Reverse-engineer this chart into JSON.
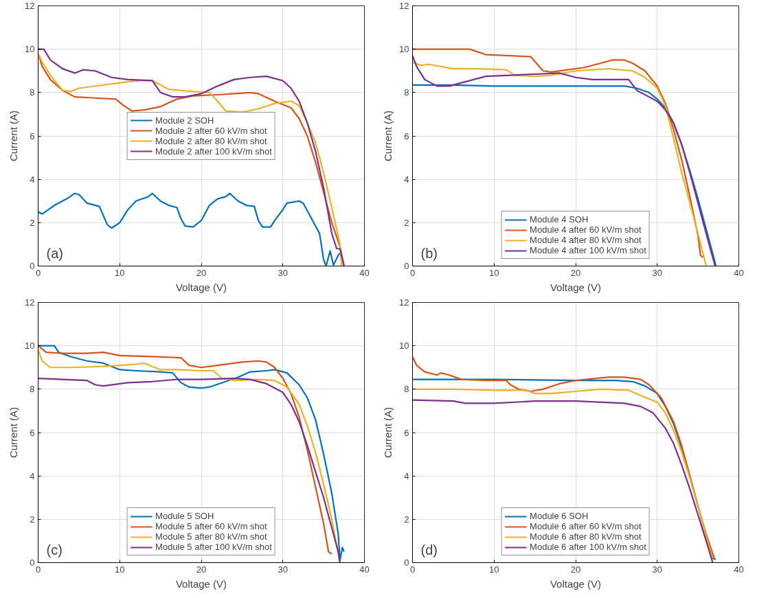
{
  "chart_data": [
    {
      "type": "line",
      "xlabel": "Voltage (V)",
      "ylabel": "Current (A)",
      "xlim": [
        0,
        40
      ],
      "ylim": [
        0,
        12
      ],
      "xticks": [
        0,
        10,
        20,
        30,
        40
      ],
      "yticks": [
        0,
        2,
        4,
        6,
        8,
        10,
        12
      ],
      "grid": true,
      "legend": "center",
      "line_style": "solid",
      "annotations": [
        "(a)"
      ],
      "series": [
        {
          "name": "Module 2 SOH",
          "color": "#0072bd",
          "x": [
            0,
            0.5,
            2,
            3.5,
            4.5,
            5,
            6,
            7.5,
            8.5,
            9,
            10,
            11,
            12,
            13.5,
            14,
            15,
            16,
            17,
            17.5,
            18,
            19,
            20,
            21,
            22,
            23,
            23.5,
            24.5,
            25.5,
            26.5,
            27,
            27.5,
            28.5,
            29,
            30,
            30.5,
            32,
            32.5,
            33.5,
            34.5,
            35,
            35.3,
            35.8,
            36.2,
            36.8,
            37
          ],
          "values": [
            2.5,
            2.4,
            2.8,
            3.1,
            3.35,
            3.3,
            2.9,
            2.75,
            1.9,
            1.75,
            2.0,
            2.6,
            3.0,
            3.2,
            3.35,
            3.0,
            2.8,
            2.7,
            2.2,
            1.85,
            1.8,
            2.1,
            2.8,
            3.1,
            3.2,
            3.35,
            3.0,
            2.8,
            2.75,
            2.1,
            1.8,
            1.8,
            2.1,
            2.6,
            2.9,
            3.0,
            2.9,
            2.2,
            1.5,
            0.3,
            0,
            0.7,
            0.05,
            0.5,
            0.6
          ]
        },
        {
          "name": "Module 2 after 60 kV/m shot",
          "color": "#d95319",
          "x": [
            0,
            0.5,
            1.5,
            3,
            4.5,
            7,
            9.5,
            10.5,
            11.5,
            13,
            15,
            17,
            19,
            22,
            26,
            27,
            29,
            30,
            31,
            32,
            33,
            34,
            35,
            36,
            37,
            37.5
          ],
          "values": [
            9.8,
            9.2,
            8.6,
            8.1,
            7.8,
            7.75,
            7.7,
            7.4,
            7.15,
            7.2,
            7.35,
            7.7,
            7.85,
            7.9,
            8.0,
            7.95,
            7.6,
            7.45,
            7.3,
            6.8,
            6.0,
            4.8,
            3.4,
            2.0,
            0.9,
            0
          ]
        },
        {
          "name": "Module 2 after 80 kV/m shot",
          "color": "#edb120",
          "x": [
            0,
            0.5,
            1.5,
            3,
            4,
            5,
            8,
            11,
            12.5,
            14,
            16,
            19,
            21,
            22,
            23,
            25,
            27,
            29,
            31,
            32,
            33,
            34,
            35,
            36,
            37,
            37.2
          ],
          "values": [
            9.8,
            9.4,
            8.8,
            8.1,
            8.05,
            8.2,
            8.35,
            8.5,
            8.55,
            8.55,
            8.15,
            8.05,
            8.0,
            7.6,
            7.15,
            7.1,
            7.25,
            7.5,
            7.6,
            7.4,
            6.6,
            5.7,
            4.3,
            2.7,
            1.0,
            0
          ]
        },
        {
          "name": "Module 2 after 100 kV/m shot",
          "color": "#7e2f8e",
          "x": [
            0,
            0.7,
            1.5,
            3,
            4.5,
            5.5,
            7,
            9,
            11,
            14,
            15,
            16.5,
            18,
            20,
            22,
            24,
            26,
            28,
            30,
            31,
            32,
            33,
            34,
            35,
            36,
            36.6,
            37,
            37.5
          ],
          "values": [
            10.0,
            10.0,
            9.5,
            9.1,
            8.9,
            9.05,
            9.0,
            8.7,
            8.6,
            8.55,
            8.0,
            7.8,
            7.8,
            7.95,
            8.3,
            8.6,
            8.7,
            8.75,
            8.55,
            8.2,
            7.6,
            6.6,
            5.3,
            3.6,
            1.5,
            0.8,
            0.8,
            0
          ]
        }
      ]
    },
    {
      "type": "line",
      "xlabel": "Voltage (V)",
      "ylabel": "Current (A)",
      "xlim": [
        0,
        40
      ],
      "ylim": [
        0,
        12
      ],
      "xticks": [
        0,
        10,
        20,
        30,
        40
      ],
      "yticks": [
        0,
        2,
        4,
        6,
        8,
        10,
        12
      ],
      "grid": true,
      "legend": "bottom",
      "line_style": "solid",
      "annotations": [
        "(b)"
      ],
      "series": [
        {
          "name": "Module 4 SOH",
          "color": "#0072bd",
          "x": [
            0,
            5,
            10,
            20,
            26,
            27.5,
            29,
            30,
            31,
            32,
            33,
            34,
            35,
            36,
            37,
            37.2
          ],
          "values": [
            8.35,
            8.35,
            8.3,
            8.3,
            8.3,
            8.2,
            8.0,
            7.7,
            7.3,
            6.6,
            5.6,
            4.4,
            3.1,
            1.7,
            0.3,
            0
          ]
        },
        {
          "name": "Module 4 after 60 kV/m shot",
          "color": "#d95319",
          "x": [
            0,
            7,
            9,
            12,
            14.5,
            16,
            17,
            19,
            21,
            23,
            24.5,
            26,
            27,
            28.5,
            30,
            31,
            32,
            33,
            34,
            35,
            35.3,
            35.6
          ],
          "values": [
            10.0,
            10.0,
            9.75,
            9.7,
            9.65,
            9.0,
            8.95,
            9.05,
            9.15,
            9.35,
            9.5,
            9.5,
            9.35,
            9.0,
            8.3,
            7.5,
            6.3,
            4.9,
            3.2,
            1.4,
            0.5,
            0.4
          ]
        },
        {
          "name": "Module 4 after 80 kV/m shot",
          "color": "#edb120",
          "x": [
            0,
            1,
            2,
            5,
            8,
            11.5,
            12.5,
            15,
            17,
            20,
            24,
            27,
            28.5,
            30,
            31,
            32,
            33,
            34,
            35,
            36
          ],
          "values": [
            9.4,
            9.25,
            9.3,
            9.1,
            9.1,
            9.05,
            8.8,
            8.75,
            8.8,
            9.0,
            9.1,
            9.0,
            8.7,
            8.2,
            7.4,
            5.9,
            4.3,
            2.9,
            1.5,
            0
          ]
        },
        {
          "name": "Module 4 after 100 kV/m shot",
          "color": "#7e2f8e",
          "x": [
            0,
            0.5,
            1.5,
            3,
            4.5,
            6,
            9,
            12,
            15,
            18,
            20,
            22,
            26.5,
            27.5,
            29,
            30,
            31,
            32,
            33,
            34,
            35,
            36,
            36.8,
            37.1
          ],
          "values": [
            9.7,
            9.2,
            8.6,
            8.3,
            8.3,
            8.45,
            8.75,
            8.8,
            8.85,
            8.9,
            8.7,
            8.6,
            8.6,
            8.1,
            7.8,
            7.6,
            7.2,
            6.6,
            5.6,
            4.3,
            2.9,
            1.5,
            0.4,
            0
          ]
        }
      ]
    },
    {
      "type": "line",
      "xlabel": "Voltage (V)",
      "ylabel": "Current (A)",
      "xlim": [
        0,
        40
      ],
      "ylim": [
        0,
        12
      ],
      "xticks": [
        0,
        10,
        20,
        30,
        40
      ],
      "yticks": [
        0,
        2,
        4,
        6,
        8,
        10,
        12
      ],
      "grid": true,
      "legend": "bottom",
      "line_style": "solid",
      "annotations": [
        "(c)"
      ],
      "series": [
        {
          "name": "Module 5 SOH",
          "color": "#0072bd",
          "x": [
            0,
            2,
            2.5,
            4,
            6,
            8,
            10,
            12,
            15,
            16.5,
            17.5,
            18.5,
            20,
            21,
            23,
            24.5,
            26,
            28,
            29,
            30.5,
            32,
            33,
            34,
            35,
            36,
            36.8,
            37,
            37.3,
            37.5
          ],
          "values": [
            10.0,
            10.0,
            9.7,
            9.5,
            9.3,
            9.2,
            8.9,
            8.85,
            8.8,
            8.75,
            8.3,
            8.1,
            8.05,
            8.1,
            8.35,
            8.55,
            8.8,
            8.85,
            8.9,
            8.75,
            8.2,
            7.6,
            6.6,
            5.0,
            3.2,
            1.3,
            0.1,
            0.7,
            0.5
          ]
        },
        {
          "name": "Module 5 after 60 kV/m shot",
          "color": "#d95319",
          "x": [
            0,
            1,
            3,
            6,
            8,
            10,
            14,
            17.5,
            18.5,
            20,
            22,
            25,
            27,
            28,
            29,
            30,
            31,
            32,
            33,
            34,
            35,
            35.6,
            36
          ],
          "values": [
            10.0,
            9.7,
            9.65,
            9.65,
            9.7,
            9.55,
            9.5,
            9.45,
            9.1,
            9.0,
            9.1,
            9.25,
            9.3,
            9.25,
            9.0,
            8.5,
            7.8,
            6.7,
            5.2,
            3.5,
            1.8,
            0.5,
            0.4
          ]
        },
        {
          "name": "Module 5 after 80 kV/m shot",
          "color": "#edb120",
          "x": [
            0,
            0.5,
            1.5,
            4,
            8,
            10,
            12,
            13,
            15,
            17,
            20,
            21.5,
            22.5,
            24,
            27,
            29,
            30.5,
            32,
            33,
            34,
            35,
            36,
            37
          ],
          "values": [
            9.8,
            9.3,
            9.0,
            9.0,
            9.05,
            9.1,
            9.15,
            9.2,
            8.9,
            8.9,
            8.85,
            8.85,
            8.5,
            8.4,
            8.45,
            8.4,
            8.1,
            7.3,
            6.3,
            5.1,
            3.6,
            2.0,
            0
          ]
        },
        {
          "name": "Module 5 after 100 kV/m shot",
          "color": "#7e2f8e",
          "x": [
            0,
            3,
            6,
            7,
            8,
            11,
            14,
            17,
            20,
            24,
            26,
            28,
            29,
            30,
            31,
            32,
            33,
            34,
            35,
            36,
            36.8,
            37
          ],
          "values": [
            8.5,
            8.45,
            8.4,
            8.2,
            8.15,
            8.3,
            8.35,
            8.45,
            8.45,
            8.5,
            8.45,
            8.25,
            8.05,
            7.85,
            7.3,
            6.5,
            5.4,
            4.2,
            3.0,
            1.6,
            0.5,
            0
          ]
        }
      ]
    },
    {
      "type": "line",
      "xlabel": "Voltage (V)",
      "ylabel": "Current (A)",
      "xlim": [
        0,
        40
      ],
      "ylim": [
        0,
        12
      ],
      "xticks": [
        0,
        10,
        20,
        30,
        40
      ],
      "yticks": [
        0,
        2,
        4,
        6,
        8,
        10,
        12
      ],
      "grid": true,
      "legend": "bottom",
      "line_style": "solid",
      "annotations": [
        "(d)"
      ],
      "series": [
        {
          "name": "Module 6 SOH",
          "color": "#0072bd",
          "x": [
            0,
            10,
            20,
            25,
            27,
            28.5,
            30,
            31,
            32,
            33,
            34,
            35,
            36,
            36.8,
            37.2
          ],
          "values": [
            8.45,
            8.45,
            8.4,
            8.4,
            8.35,
            8.15,
            7.8,
            7.2,
            6.4,
            5.3,
            4.0,
            2.6,
            1.2,
            0.2,
            0.15
          ]
        },
        {
          "name": "Module 6 after 60 kV/m shot",
          "color": "#d95319",
          "x": [
            0,
            0.5,
            1.5,
            3,
            3.5,
            4.5,
            6,
            9,
            11.5,
            12,
            13,
            14.5,
            16,
            18,
            20,
            24,
            26,
            28,
            29,
            30.5,
            32,
            33,
            34,
            35,
            36,
            37
          ],
          "values": [
            9.5,
            9.1,
            8.8,
            8.65,
            8.75,
            8.65,
            8.45,
            8.4,
            8.4,
            8.2,
            8.0,
            7.9,
            8.0,
            8.25,
            8.4,
            8.55,
            8.55,
            8.45,
            8.2,
            7.6,
            6.5,
            5.4,
            4.0,
            2.6,
            1.3,
            0.2
          ]
        },
        {
          "name": "Module 6 after 80 kV/m shot",
          "color": "#edb120",
          "x": [
            0,
            5,
            10,
            14,
            15,
            17,
            20,
            23,
            26.5,
            28,
            30,
            31,
            32,
            33,
            34,
            35,
            36,
            36.8
          ],
          "values": [
            8.0,
            8.0,
            7.95,
            7.95,
            7.8,
            7.8,
            7.9,
            8.0,
            7.95,
            7.7,
            7.4,
            6.9,
            6.1,
            5.1,
            3.9,
            2.6,
            1.2,
            0.2
          ]
        },
        {
          "name": "Module 6 after 100 kV/m shot",
          "color": "#7e2f8e",
          "x": [
            0,
            5,
            6.5,
            10,
            15,
            20,
            26,
            28,
            29.5,
            31,
            32,
            33,
            34,
            35,
            36,
            36.8
          ],
          "values": [
            7.5,
            7.45,
            7.35,
            7.35,
            7.45,
            7.45,
            7.35,
            7.2,
            6.9,
            6.2,
            5.5,
            4.5,
            3.4,
            2.2,
            1.0,
            0
          ]
        }
      ]
    }
  ]
}
